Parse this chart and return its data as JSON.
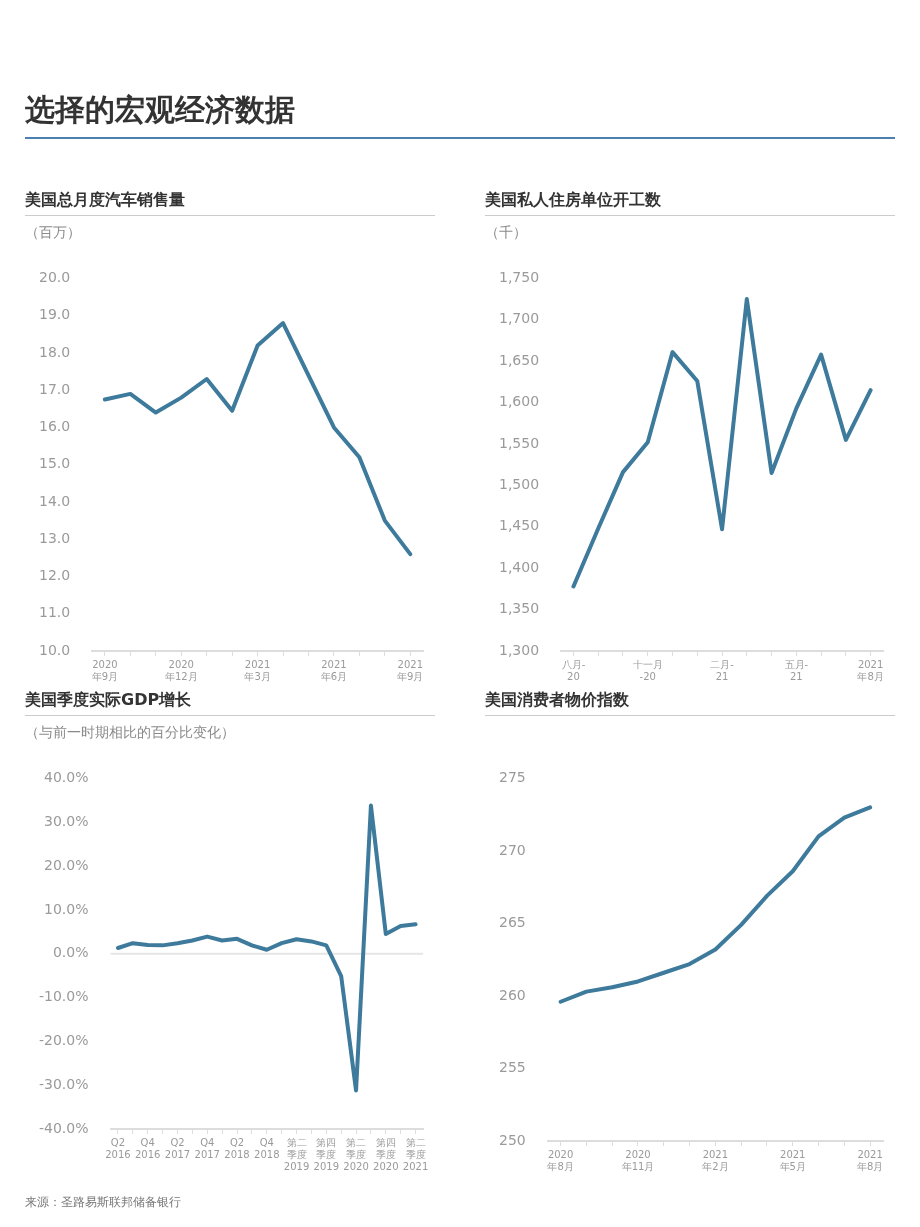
{
  "chart_data": [
    {
      "type": "line",
      "title": "美国总月度汽车销售量",
      "ylabel": "（百万）",
      "annotations": [
        "选择的宏观经济数据"
      ],
      "grid": false,
      "marker": "none",
      "line_style": "solid",
      "color": "#3d7a9b",
      "categories": [
        "2020年9月",
        null,
        null,
        "2020年12月",
        null,
        null,
        "2021年3月",
        null,
        null,
        "2021年6月",
        null,
        null,
        "2021年9月"
      ],
      "values": [
        16.75,
        16.9,
        16.4,
        16.8,
        17.3,
        16.45,
        18.2,
        18.8,
        17.4,
        16.0,
        15.2,
        13.5,
        12.6
      ],
      "ylim": [
        10,
        20
      ],
      "yticks": [
        {
          "value": 10,
          "label": "10.0"
        },
        {
          "value": 11,
          "label": "11.0"
        },
        {
          "value": 12,
          "label": "12.0"
        },
        {
          "value": 13,
          "label": "13.0"
        },
        {
          "value": 14,
          "label": "14.0"
        },
        {
          "value": 15,
          "label": "15.0"
        },
        {
          "value": 16,
          "label": "16.0"
        },
        {
          "value": 17,
          "label": "17.0"
        },
        {
          "value": 18,
          "label": "18.0"
        },
        {
          "value": 19,
          "label": "19.0"
        },
        {
          "value": 20,
          "label": "20.0"
        }
      ]
    },
    {
      "type": "line",
      "title": "美国私人住房单位开工数",
      "ylabel": "（千）",
      "grid": false,
      "marker": "none",
      "line_style": "solid",
      "color": "#3d7a9b",
      "categories": [
        "八月-20",
        null,
        null,
        "十一月-20",
        null,
        null,
        "二月-21",
        null,
        null,
        "五月-21",
        null,
        null,
        "2021年8月"
      ],
      "values": [
        1378,
        1448,
        1516,
        1552,
        1661,
        1626,
        1447,
        1725,
        1515,
        1593,
        1658,
        1555,
        1615
      ],
      "ylim": [
        1300,
        1750
      ],
      "yticks": [
        {
          "value": 1300,
          "label": "1,300"
        },
        {
          "value": 1350,
          "label": "1,350"
        },
        {
          "value": 1400,
          "label": "1,400"
        },
        {
          "value": 1450,
          "label": "1,450"
        },
        {
          "value": 1500,
          "label": "1,500"
        },
        {
          "value": 1550,
          "label": "1,550"
        },
        {
          "value": 1600,
          "label": "1,600"
        },
        {
          "value": 1650,
          "label": "1,650"
        },
        {
          "value": 1700,
          "label": "1,700"
        },
        {
          "value": 1750,
          "label": "1,750"
        }
      ]
    },
    {
      "type": "line",
      "title": "美国季度实际GDP增长",
      "ylabel": "（与前一时期相比的百分比变化）",
      "annotations": [
        "来源：圣路易斯联邦储备银行"
      ],
      "grid": false,
      "marker": "none",
      "line_style": "solid",
      "color": "#3d7a9b",
      "categories": [
        "Q2\n2016",
        null,
        "Q4\n2016",
        null,
        "Q2\n2017",
        null,
        "Q4\n2017",
        null,
        "Q2\n2018",
        null,
        "Q4\n2018",
        null,
        "第二季度\n2019",
        null,
        "第四季度\n2019",
        null,
        "第二季度\n2020",
        null,
        "第四季度\n2020",
        null,
        "第二季度\n2021"
      ],
      "values": [
        1.3,
        2.4,
        2.0,
        1.9,
        2.4,
        3.0,
        3.9,
        3.0,
        3.4,
        1.9,
        0.9,
        2.4,
        3.3,
        2.8,
        1.9,
        -5.1,
        -31.2,
        33.8,
        4.5,
        6.3,
        6.7
      ],
      "ylim": [
        -40,
        40
      ],
      "yticks": [
        {
          "value": -40,
          "label": "-40.0%"
        },
        {
          "value": -30,
          "label": "-30.0%"
        },
        {
          "value": -20,
          "label": "-20.0%"
        },
        {
          "value": -10,
          "label": "-10.0%"
        },
        {
          "value": 0,
          "label": "0.0%"
        },
        {
          "value": 10,
          "label": "10.0%"
        },
        {
          "value": 20,
          "label": "20.0%"
        },
        {
          "value": 30,
          "label": "30.0%"
        },
        {
          "value": 40,
          "label": "40.0%"
        }
      ],
      "ref_lines": [
        {
          "axis": "y",
          "value": 0,
          "color": "#e6e6e6"
        }
      ]
    },
    {
      "type": "line",
      "title": "美国消费者物价指数",
      "grid": false,
      "marker": "none",
      "line_style": "solid",
      "color": "#3d7a9b",
      "categories": [
        "2020年8月",
        null,
        null,
        "2020年11月",
        null,
        null,
        "2021年2月",
        null,
        null,
        "2021年5月",
        null,
        null,
        "2021年8月"
      ],
      "values": [
        259.6,
        260.3,
        260.6,
        261.0,
        261.6,
        262.2,
        263.2,
        264.9,
        266.9,
        268.6,
        271.0,
        272.3,
        273.0
      ],
      "ylim": [
        250,
        275
      ],
      "yticks": [
        250,
        255,
        260,
        265,
        270,
        275
      ]
    }
  ]
}
